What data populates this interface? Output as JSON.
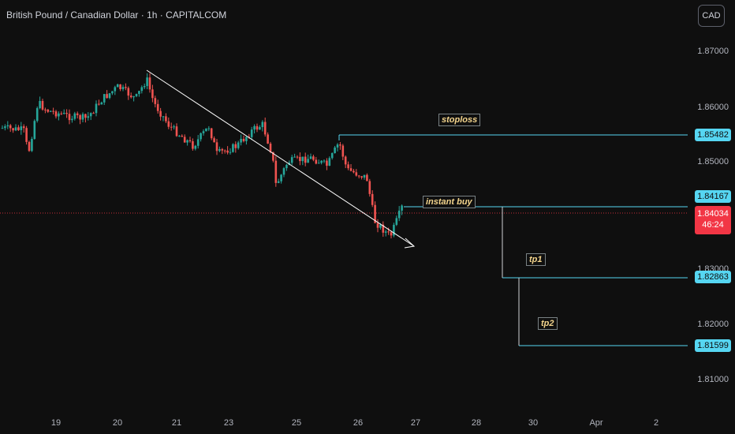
{
  "header": {
    "title": "British Pound / Canadian Dollar · 1h · CAPITALCOM",
    "currency_button": "CAD"
  },
  "price_axis": {
    "ticks": [
      "1.87000",
      "1.86000",
      "1.85000",
      "1.83000",
      "1.82000",
      "1.81000"
    ],
    "tick_values": [
      1.87,
      1.86,
      1.85,
      1.83,
      1.82,
      1.81
    ],
    "badges": [
      {
        "name": "stoploss-price",
        "label": "1.85482",
        "value": 1.85482
      },
      {
        "name": "entry-price",
        "label": "1.84167",
        "value": 1.84167
      },
      {
        "name": "tp1-price",
        "label": "1.82863",
        "value": 1.82863
      },
      {
        "name": "tp2-price",
        "label": "1.81599",
        "value": 1.81599
      }
    ],
    "current": {
      "price": "1.84034",
      "countdown": "46:24",
      "value": 1.84034
    }
  },
  "time_axis": {
    "labels": [
      "19",
      "20",
      "21",
      "23",
      "25",
      "26",
      "27",
      "28",
      "30",
      "Apr",
      "2"
    ]
  },
  "annotations": {
    "stoploss": "stoploss",
    "instant_buy": "instant buy",
    "tp1": "tp1",
    "tp2": "tp2"
  },
  "colors": {
    "up": "#26a69a",
    "down": "#ef5350",
    "level_line": "#56d6f2",
    "current_price": "#f23645",
    "trendline": "#ffffff"
  }
}
